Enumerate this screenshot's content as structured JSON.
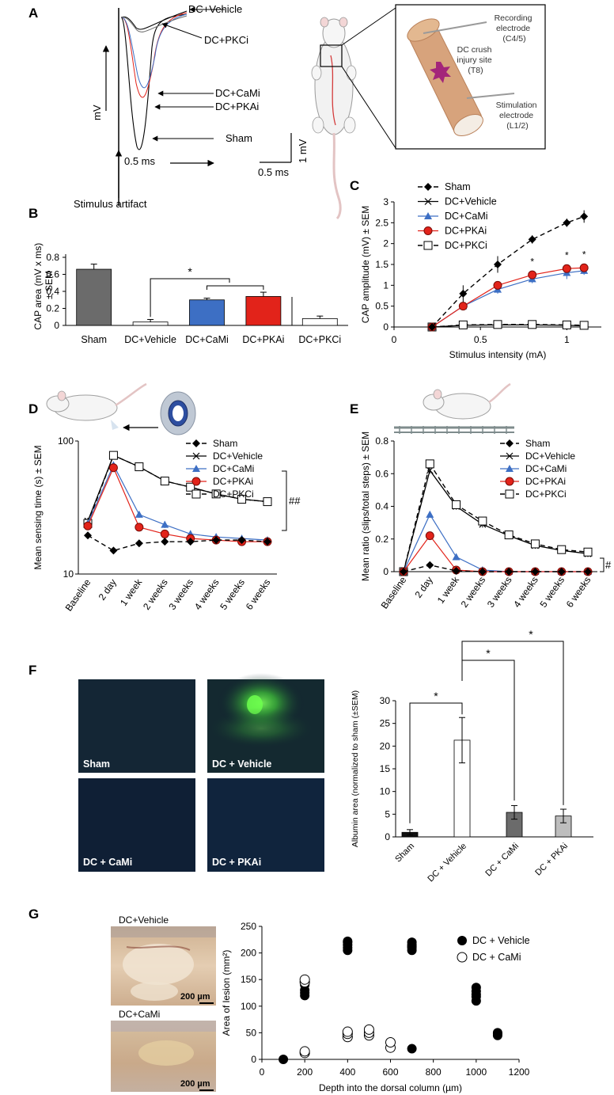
{
  "panel_labels": [
    "A",
    "B",
    "C",
    "D",
    "E",
    "F",
    "G"
  ],
  "panel_a": {
    "trace_labels": [
      "DC+Vehicle",
      "DC+PKCi",
      "DC+CaMi",
      "DC+PKAi",
      "Sham"
    ],
    "mv_label": "mV",
    "ms_label": "0.5 ms",
    "stimulus_label": "Stimulus artifact",
    "scale_x_label": "0.5 ms",
    "scale_y_label": "1 mV",
    "recording_label": [
      "Recording",
      "electrode",
      "(C4/5)"
    ],
    "injury_label": [
      "DC crush",
      "injury site",
      "(T8)"
    ],
    "stimulation_label": [
      "Stimulation",
      "electrode",
      "(L1/2)"
    ]
  },
  "panel_f": {
    "image_labels": [
      "Sham",
      "DC + Vehicle",
      "DC + CaMi",
      "DC + PKAi"
    ]
  },
  "panel_g": {
    "image_labels": [
      "DC+Vehicle",
      "DC+CaMi"
    ],
    "scalebar_label": "200 µm"
  },
  "colors": {
    "sham_bar": "#6b6b6b",
    "camki": "#3d6fc4",
    "pkai": "#e2231a",
    "fluor_green": "#3fbf3a",
    "fluor_blue": "#0b1530",
    "tissue": "#d8b896"
  },
  "chart_data": [
    {
      "id": "B",
      "type": "bar",
      "categories": [
        "Sham",
        "DC+Vehicle",
        "DC+CaMi",
        "DC+PKAi",
        "DC+PKCi"
      ],
      "values": [
        0.66,
        0.04,
        0.3,
        0.34,
        0.08
      ],
      "errors": [
        0.06,
        0.03,
        0.02,
        0.05,
        0.03
      ],
      "ylabel": [
        "CAP area (mV x ms)",
        "± SEM"
      ],
      "ylim": [
        0,
        0.8
      ],
      "yticks": [
        "0",
        "0.2",
        "0.4",
        "0.6",
        "0.8"
      ],
      "significance": "*"
    },
    {
      "id": "C",
      "type": "line",
      "x": [
        0.22,
        0.4,
        0.6,
        0.8,
        1.0,
        1.1
      ],
      "series": [
        {
          "name": "Sham",
          "values": [
            0,
            0.8,
            1.5,
            2.1,
            2.5,
            2.65
          ],
          "errors": [
            0,
            0.2,
            0.2,
            0.1,
            0.1,
            0.15
          ]
        },
        {
          "name": "DC+Vehicle",
          "values": [
            0,
            0.04,
            0.05,
            0.05,
            0.04,
            0.03
          ],
          "errors": [
            0,
            0.02,
            0.02,
            0.02,
            0.02,
            0.02
          ]
        },
        {
          "name": "DC+CaMi",
          "values": [
            0,
            0.5,
            0.9,
            1.15,
            1.3,
            1.35
          ],
          "errors": [
            0,
            0.1,
            0.1,
            0.1,
            0.15,
            0.1
          ]
        },
        {
          "name": "DC+PKAi",
          "values": [
            0,
            0.5,
            1.0,
            1.25,
            1.4,
            1.42
          ],
          "errors": [
            0,
            0.1,
            0.1,
            0.1,
            0.1,
            0.1
          ]
        },
        {
          "name": "DC+PKCi",
          "values": [
            0,
            0.05,
            0.06,
            0.06,
            0.05,
            0.04
          ],
          "errors": [
            0,
            0.02,
            0.02,
            0.02,
            0.02,
            0.02
          ]
        }
      ],
      "xlabel": "Stimulus intensity (mA)",
      "ylabel": "CAP amplitude (mV) ± SEM",
      "xlim": [
        0,
        1.2
      ],
      "ylim": [
        0,
        3
      ],
      "xticks": [
        "0",
        "0.5",
        "1"
      ],
      "yticks": [
        "0",
        "0.5",
        "1",
        "1.5",
        "2",
        "2.5",
        "3"
      ],
      "significance_x": [
        0.8,
        1.0,
        1.1
      ],
      "significance": "*",
      "legend": "top-left"
    },
    {
      "id": "D",
      "type": "line",
      "categories": [
        "Baseline",
        "2 day",
        "1 week",
        "2 weeks",
        "3 weeks",
        "4 weeks",
        "5 weeks",
        "6 weeks"
      ],
      "series": [
        {
          "name": "Sham",
          "values": [
            19.5,
            15,
            17,
            17.5,
            17.5,
            18,
            18,
            17.5
          ]
        },
        {
          "name": "DC+Vehicle",
          "values": [
            25,
            78,
            64,
            50,
            45,
            40,
            36.5,
            35
          ]
        },
        {
          "name": "DC+CaMi",
          "values": [
            24,
            66,
            28,
            23.5,
            20,
            19,
            18.5,
            18
          ]
        },
        {
          "name": "DC+PKAi",
          "values": [
            23,
            63,
            22.5,
            20,
            18.5,
            18,
            17.5,
            17.5
          ]
        },
        {
          "name": "DC+PKCi",
          "values": [
            24,
            78,
            64,
            50,
            45,
            40,
            36.5,
            35
          ]
        }
      ],
      "ylabel": "Mean sensing time (s) ± SEM",
      "yscale": "log",
      "ylim": [
        10,
        100
      ],
      "yticks": [
        "10",
        "100"
      ],
      "significance": "##",
      "legend": "top-right"
    },
    {
      "id": "E",
      "type": "line",
      "categories": [
        "Baseline",
        "2 day",
        "1 week",
        "2 weeks",
        "3 weeks",
        "4 weeks",
        "5 weeks",
        "6 weeks"
      ],
      "series": [
        {
          "name": "Sham",
          "values": [
            0,
            0.04,
            0.005,
            0,
            0,
            0,
            0,
            0
          ]
        },
        {
          "name": "DC+Vehicle",
          "values": [
            0,
            0.62,
            0.4,
            0.29,
            0.22,
            0.16,
            0.13,
            0.11
          ]
        },
        {
          "name": "DC+CaMi",
          "values": [
            0,
            0.35,
            0.09,
            0.01,
            0,
            0,
            0,
            0
          ]
        },
        {
          "name": "DC+PKAi",
          "values": [
            0,
            0.22,
            0.01,
            0,
            0,
            0,
            0,
            0
          ]
        },
        {
          "name": "DC+PKCi",
          "values": [
            0,
            0.66,
            0.41,
            0.31,
            0.225,
            0.17,
            0.135,
            0.12
          ]
        }
      ],
      "ylabel": "Mean ratio (slips/total steps) ± SEM",
      "ylim": [
        0,
        0.8
      ],
      "yticks": [
        "0",
        "0.2",
        "0.4",
        "0.6",
        "0.8"
      ],
      "significance": "#",
      "legend": "top-right"
    },
    {
      "id": "F",
      "type": "bar",
      "categories": [
        "Sham",
        "DC + Vehicle",
        "DC + CaMi",
        "DC + PKAi"
      ],
      "values": [
        1.0,
        21.3,
        5.4,
        4.6
      ],
      "errors": [
        0.6,
        5.0,
        1.5,
        1.5
      ],
      "ylabel": "Albumin area (normalized to sham (±SEM)",
      "ylim": [
        0,
        30
      ],
      "yticks": [
        "0",
        "5",
        "10",
        "15",
        "20",
        "25",
        "30"
      ],
      "significance": "*"
    },
    {
      "id": "G",
      "type": "scatter",
      "series": [
        {
          "name": "DC + Vehicle",
          "x": [
            100,
            200,
            200,
            200,
            200,
            200,
            400,
            400,
            400,
            400,
            400,
            700,
            700,
            700,
            700,
            700,
            700,
            1000,
            1000,
            1000,
            1000,
            1000,
            1100,
            1100,
            1100
          ],
          "y": [
            0,
            120,
            125,
            130,
            140,
            145,
            205,
            210,
            215,
            220,
            222,
            20,
            205,
            210,
            215,
            220,
            212,
            110,
            118,
            122,
            128,
            135,
            45,
            48,
            50
          ]
        },
        {
          "name": "DC + CaMi",
          "x": [
            200,
            200,
            200,
            200,
            400,
            400,
            400,
            500,
            500,
            500,
            600,
            600
          ],
          "y": [
            12,
            15,
            145,
            150,
            42,
            48,
            52,
            45,
            50,
            56,
            22,
            32
          ]
        }
      ],
      "xlabel": "Depth into the dorsal column (µm)",
      "ylabel": "Area of lesion (mm²)",
      "xlim": [
        0,
        1200
      ],
      "ylim": [
        0,
        250
      ],
      "xticks": [
        "0",
        "200",
        "400",
        "600",
        "800",
        "1000",
        "1200"
      ],
      "yticks": [
        "0",
        "50",
        "100",
        "150",
        "200",
        "250"
      ],
      "legend": "top-right"
    }
  ]
}
